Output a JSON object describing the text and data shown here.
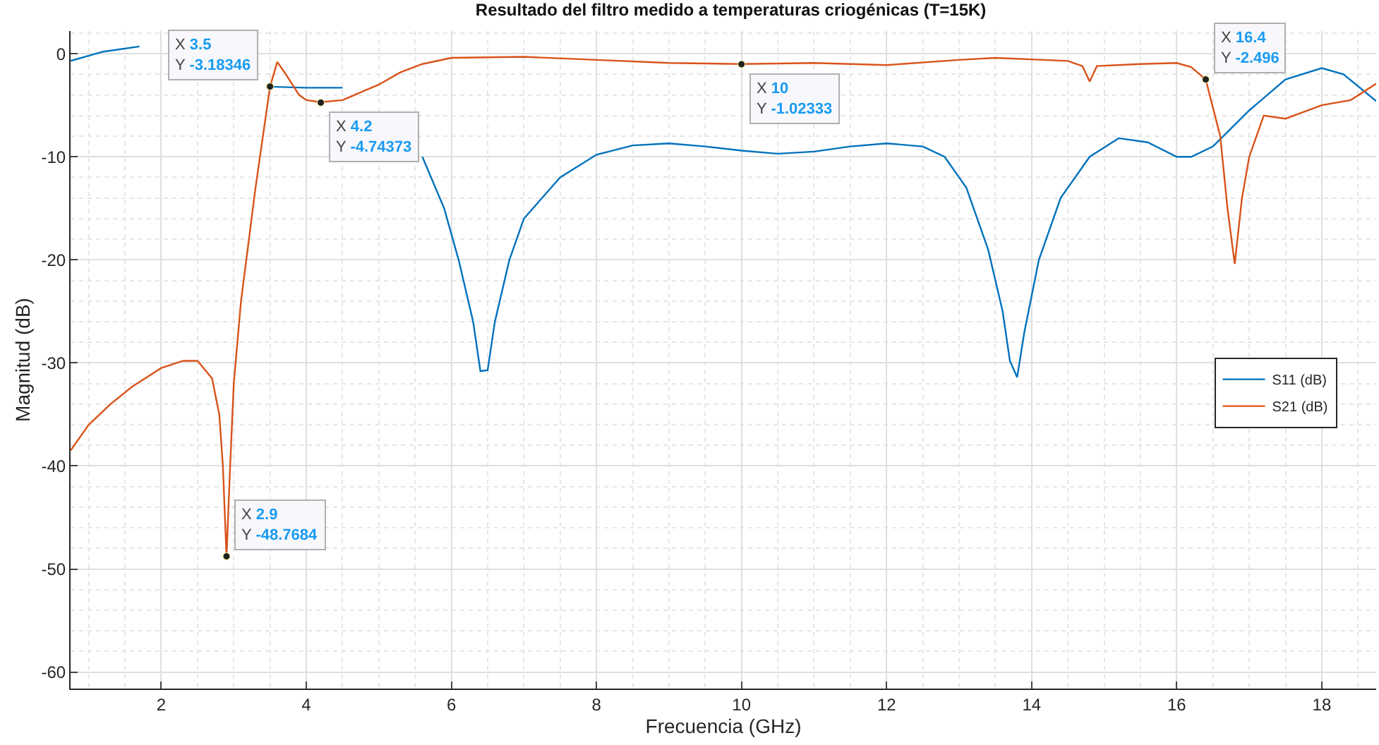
{
  "chart_data": {
    "type": "line",
    "title": "Resultado del filtro medido a temperaturas criogénicas (T=15K)",
    "xlabel": "Frecuencia (GHz)",
    "ylabel": "Magnitud (dB)",
    "xlim": [
      0.75,
      18.75
    ],
    "xticks": [
      2,
      4,
      6,
      8,
      10,
      12,
      14,
      16,
      18
    ],
    "ylim": [
      -61.6,
      2.2
    ],
    "yticks": [
      -60,
      -50,
      -40,
      -30,
      -20,
      -10,
      0
    ],
    "grid": true,
    "legend": "right",
    "marker": "none",
    "line_style": "solid",
    "series": [
      {
        "name": "S11 (dB)",
        "color": "#0072bd",
        "x": [
          0.75,
          1.2,
          1.7,
          2.2,
          2.5,
          3.0,
          3.5,
          4.0,
          4.5,
          5.0,
          5.3,
          5.6,
          5.9,
          6.1,
          6.3,
          6.4,
          6.5,
          6.6,
          6.8,
          7.0,
          7.5,
          8.0,
          8.5,
          9.0,
          9.5,
          10.0,
          10.5,
          11.0,
          11.5,
          12.0,
          12.5,
          12.8,
          13.1,
          13.4,
          13.6,
          13.7,
          13.8,
          13.9,
          14.1,
          14.4,
          14.8,
          15.2,
          15.6,
          16.0,
          16.2,
          16.5,
          17.0,
          17.5,
          18.0,
          18.3,
          18.75
        ],
        "values": [
          -0.7,
          0.2,
          0.7,
          null,
          null,
          null,
          -3.2,
          -3.3,
          -3.3,
          null,
          null,
          -10,
          -15,
          -20,
          -26,
          -30.8,
          -30.7,
          -26,
          -20,
          -16,
          -12,
          -9.8,
          -8.9,
          -8.7,
          -9,
          -9.4,
          -9.7,
          -9.5,
          -9,
          -8.7,
          -9,
          -10,
          -13,
          -19,
          -25,
          -29.8,
          -31.4,
          -27,
          -20,
          -14,
          -10,
          -8.2,
          -8.6,
          -10,
          -10,
          -9,
          -5.5,
          -2.5,
          -1.4,
          -2,
          -4.6
        ]
      },
      {
        "name": "S21 (dB)",
        "color": "#d95319",
        "x": [
          0.75,
          1.0,
          1.3,
          1.6,
          2.0,
          2.3,
          2.5,
          2.7,
          2.8,
          2.85,
          2.9,
          2.95,
          3.0,
          3.1,
          3.3,
          3.5,
          3.6,
          3.7,
          3.9,
          4.0,
          4.2,
          4.5,
          4.8,
          5.0,
          5.3,
          5.6,
          6.0,
          7.0,
          8.0,
          9.0,
          10.0,
          11.0,
          12.0,
          13.0,
          13.5,
          14.5,
          14.7,
          14.8,
          14.9,
          15.5,
          16.0,
          16.2,
          16.4,
          16.6,
          16.7,
          16.8,
          16.9,
          17.0,
          17.2,
          17.5,
          18.0,
          18.4,
          18.75
        ],
        "values": [
          -38.5,
          -36,
          -34,
          -32.3,
          -30.5,
          -29.8,
          -29.8,
          -31.5,
          -35,
          -40,
          -48.8,
          -40,
          -32,
          -24,
          -13,
          -3.2,
          -0.8,
          -1.8,
          -4,
          -4.5,
          -4.7,
          -4.5,
          -3.6,
          -3,
          -1.8,
          -1,
          -0.4,
          -0.3,
          -0.6,
          -0.9,
          -1.0,
          -0.9,
          -1.1,
          -0.6,
          -0.4,
          -0.7,
          -1.2,
          -2.7,
          -1.2,
          -1,
          -0.9,
          -1.3,
          -2.5,
          -8,
          -15,
          -20.4,
          -14,
          -10,
          -6,
          -6.3,
          -5,
          -4.5,
          -2.9
        ]
      }
    ],
    "annotations": [
      {
        "text": "X 2.9\nY -48.7684",
        "x": 2.9,
        "y": -48.7684
      },
      {
        "text": "X 3.5\nY -3.18346",
        "x": 3.5,
        "y": -3.18346
      },
      {
        "text": "X 4.2\nY -4.74373",
        "x": 4.2,
        "y": -4.74373
      },
      {
        "text": "X 10\nY -1.02333",
        "x": 10,
        "y": -1.02333
      },
      {
        "text": "X 16.4\nY -2.496",
        "x": 16.4,
        "y": -2.496
      }
    ]
  }
}
